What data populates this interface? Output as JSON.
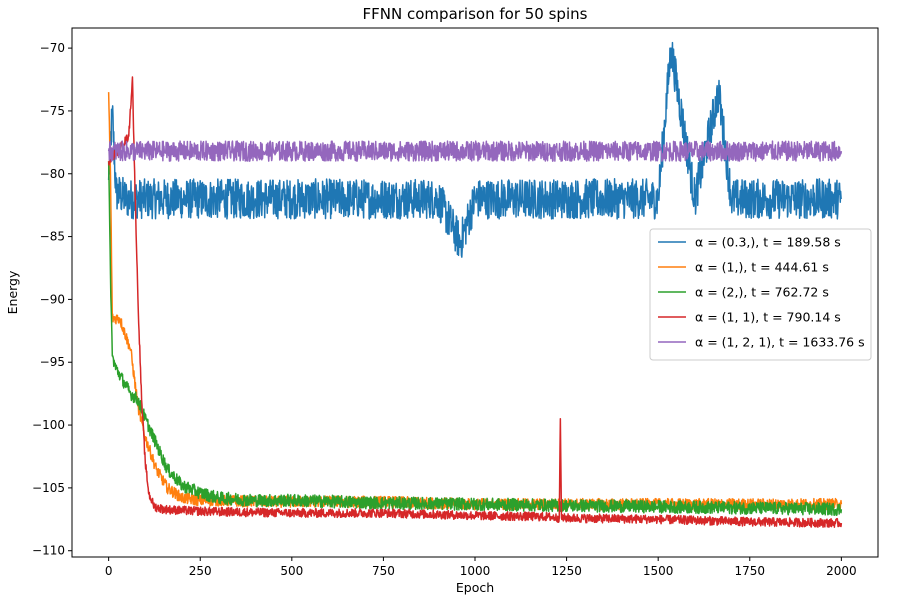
{
  "chart_data": {
    "type": "line",
    "title": "FFNN comparison for 50 spins",
    "xlabel": "Epoch",
    "ylabel": "Energy",
    "xlim": [
      -100,
      2100
    ],
    "ylim": [
      -110.5,
      -68.4
    ],
    "xticks": [
      0,
      250,
      500,
      750,
      1000,
      1250,
      1500,
      1750,
      2000
    ],
    "yticks": [
      -110,
      -105,
      -100,
      -95,
      -90,
      -85,
      -80,
      -75,
      -70
    ],
    "xtick_labels": [
      "0",
      "250",
      "500",
      "750",
      "1000",
      "1250",
      "1500",
      "1750",
      "2000"
    ],
    "ytick_labels": [
      "−110",
      "−105",
      "−100",
      "−95",
      "−90",
      "−85",
      "−80",
      "−75",
      "−70"
    ],
    "grid": false,
    "legend_position": "center-right",
    "series": [
      {
        "name": "α = (0.3,), t = 189.58 s",
        "color": "#1f77b4",
        "x": [
          0,
          10,
          20,
          50,
          100,
          150,
          200,
          300,
          400,
          500,
          600,
          700,
          800,
          900,
          960,
          1000,
          1100,
          1200,
          1300,
          1400,
          1500,
          1535,
          1600,
          1665,
          1700,
          1800,
          1900,
          2000
        ],
        "y": [
          -80.5,
          -75,
          -81.5,
          -82,
          -82,
          -82,
          -82,
          -82,
          -82,
          -82,
          -82,
          -82,
          -82,
          -82,
          -85.5,
          -82,
          -82,
          -82,
          -82,
          -82,
          -82,
          -70,
          -82,
          -73.5,
          -82,
          -82,
          -82,
          -82
        ],
        "noise": 1.6
      },
      {
        "name": "α = (1,), t = 444.61 s",
        "color": "#ff7f0e",
        "x": [
          0,
          5,
          10,
          30,
          60,
          80,
          100,
          130,
          160,
          200,
          250,
          300,
          400,
          500,
          750,
          1000,
          1250,
          1500,
          1750,
          2000
        ],
        "y": [
          -73.5,
          -80,
          -91.5,
          -91.5,
          -94,
          -98.5,
          -101,
          -103.5,
          -105,
          -105.8,
          -106,
          -106,
          -106.1,
          -106.1,
          -106.1,
          -106.3,
          -106.3,
          -106.3,
          -106.3,
          -106.3
        ],
        "noise": 0.45
      },
      {
        "name": "α = (2,), t = 762.72 s",
        "color": "#2ca02c",
        "x": [
          0,
          5,
          10,
          20,
          40,
          60,
          80,
          100,
          130,
          160,
          200,
          250,
          300,
          400,
          500,
          750,
          1000,
          1250,
          1500,
          1750,
          2000
        ],
        "y": [
          -79,
          -88,
          -94.5,
          -95.5,
          -96.5,
          -97.5,
          -98,
          -99.5,
          -101.5,
          -103.5,
          -104.8,
          -105.4,
          -105.8,
          -106,
          -106,
          -106.2,
          -106.3,
          -106.4,
          -106.5,
          -106.6,
          -106.7
        ],
        "noise": 0.5
      },
      {
        "name": "α = (1, 1), t = 790.14 s",
        "color": "#d62728",
        "x": [
          0,
          30,
          55,
          65,
          70,
          80,
          90,
          100,
          110,
          125,
          150,
          200,
          300,
          500,
          750,
          1000,
          1200,
          1230,
          1233,
          1236,
          1250,
          1500,
          1750,
          2000
        ],
        "y": [
          -79,
          -78,
          -77,
          -72.3,
          -79,
          -90,
          -98,
          -103,
          -105.5,
          -106.5,
          -106.7,
          -106.8,
          -106.9,
          -107,
          -107,
          -107.2,
          -107.3,
          -107.4,
          -99.5,
          -107.4,
          -107.4,
          -107.5,
          -107.7,
          -107.8
        ],
        "noise": 0.35
      },
      {
        "name": "α = (1, 2, 1), t = 1633.76 s",
        "color": "#9467bd",
        "x": [
          0,
          2000
        ],
        "y": [
          -78.2,
          -78.2
        ],
        "noise": 0.8
      }
    ]
  }
}
